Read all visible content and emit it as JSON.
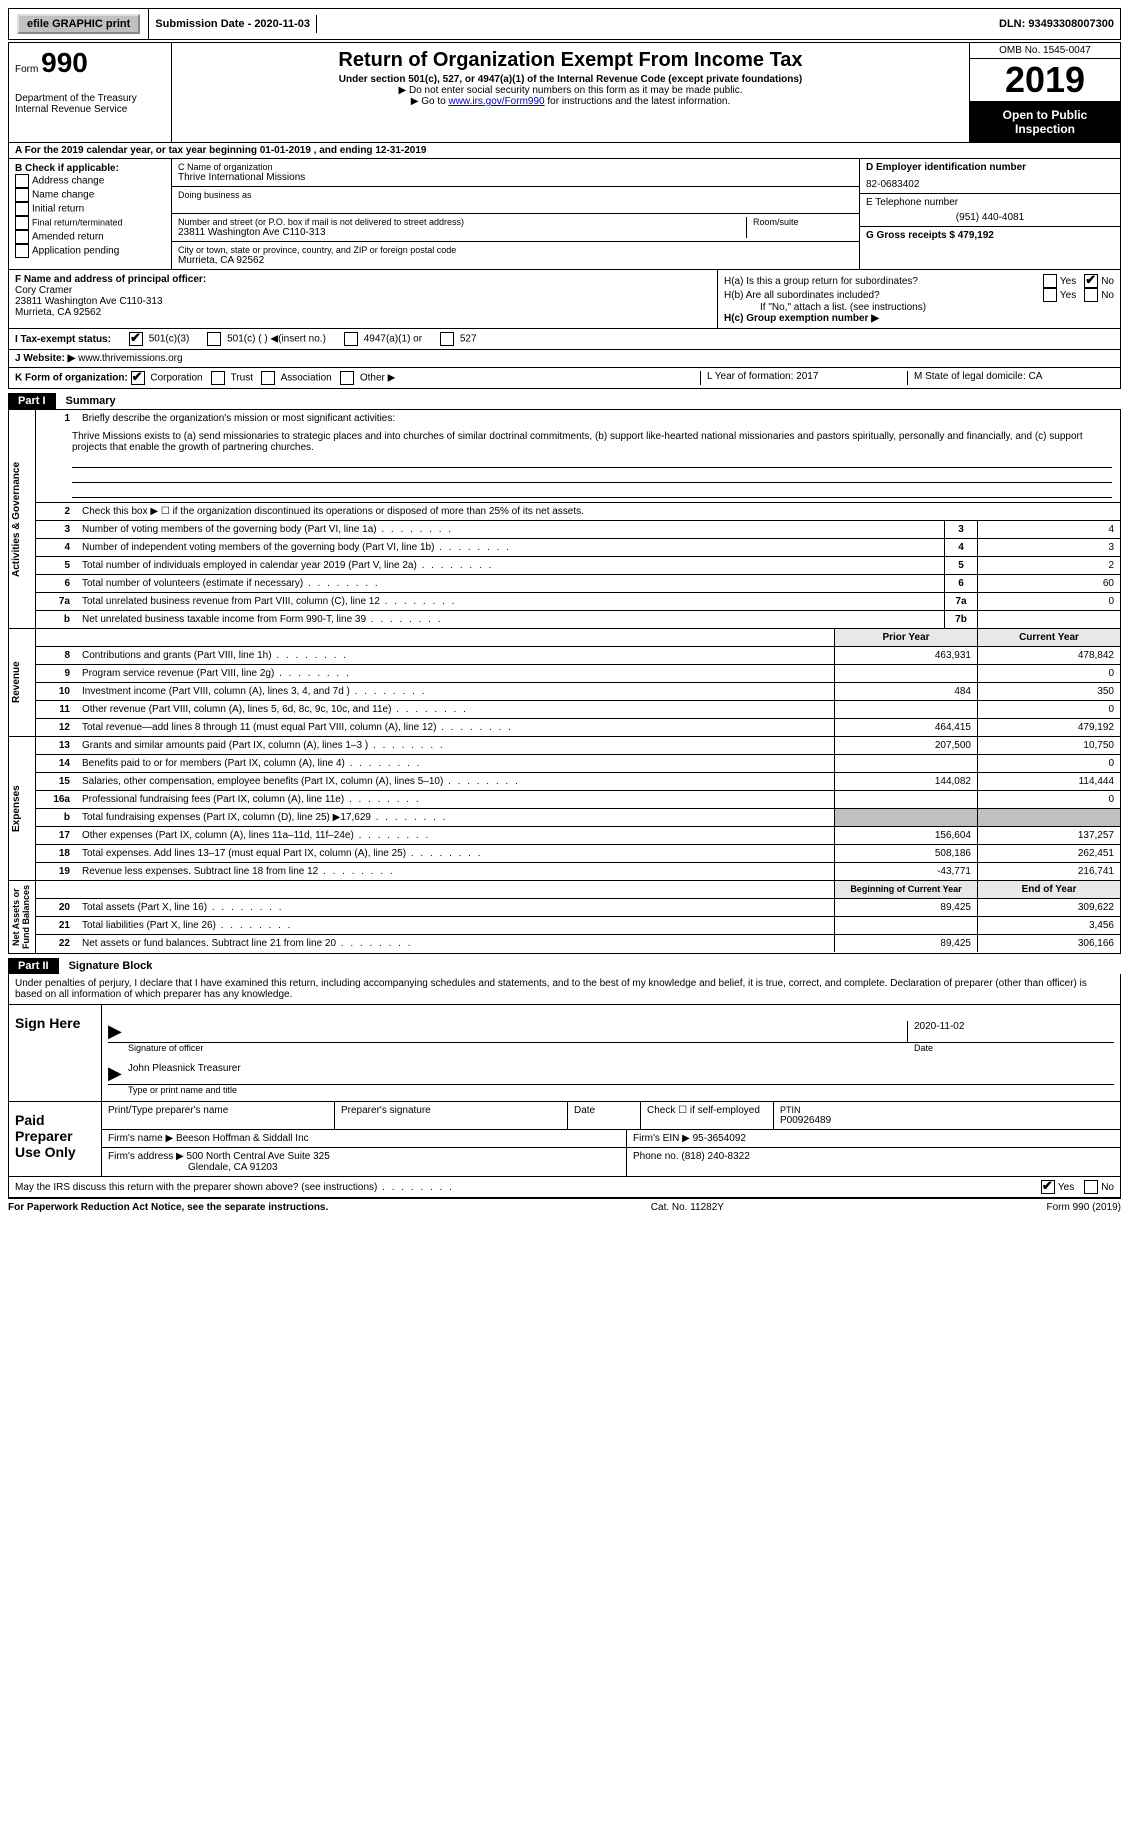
{
  "topbar": {
    "efile_btn": "efile GRAPHIC print",
    "submission_date": "Submission Date - 2020-11-03",
    "dln": "DLN: 93493308007300"
  },
  "header": {
    "form_label": "Form",
    "form_number": "990",
    "dept1": "Department of the Treasury",
    "dept2": "Internal Revenue Service",
    "title": "Return of Organization Exempt From Income Tax",
    "subtitle": "Under section 501(c), 527, or 4947(a)(1) of the Internal Revenue Code (except private foundations)",
    "note1": "▶ Do not enter social security numbers on this form as it may be made public.",
    "note2_pre": "▶ Go to ",
    "note2_link": "www.irs.gov/Form990",
    "note2_post": " for instructions and the latest information.",
    "omb": "OMB No. 1545-0047",
    "year": "2019",
    "open_public": "Open to Public Inspection"
  },
  "row_a": "A  For the 2019 calendar year, or tax year beginning 01-01-2019  , and ending 12-31-2019",
  "section_b": {
    "b_label": "B Check if applicable:",
    "checks": [
      "Address change",
      "Name change",
      "Initial return",
      "Final return/terminated",
      "Amended return",
      "Application pending"
    ],
    "c_label": "C Name of organization",
    "c_name": "Thrive International Missions",
    "dba": "Doing business as",
    "addr_label": "Number and street (or P.O. box if mail is not delivered to street address)",
    "room": "Room/suite",
    "addr_value": "23811 Washington Ave C110-313",
    "city_label": "City or town, state or province, country, and ZIP or foreign postal code",
    "city_value": "Murrieta, CA  92562",
    "d_label": "D Employer identification number",
    "d_value": "82-0683402",
    "e_label": "E Telephone number",
    "e_value": "(951) 440-4081",
    "g_label": "G Gross receipts $ 479,192"
  },
  "section_f": {
    "f_label": "F  Name and address of principal officer:",
    "f_name": "Cory Cramer",
    "f_addr1": "23811 Washington Ave C110-313",
    "f_addr2": "Murrieta, CA  92562",
    "ha": "H(a)  Is this a group return for subordinates?",
    "hb": "H(b)  Are all subordinates included?",
    "hb_note": "If \"No,\" attach a list. (see instructions)",
    "hc": "H(c)  Group exemption number ▶"
  },
  "row_i": {
    "label": "I  Tax-exempt status:",
    "opt1": "501(c)(3)",
    "opt2": "501(c) (  ) ◀(insert no.)",
    "opt3": "4947(a)(1) or",
    "opt4": "527"
  },
  "row_j": {
    "label": "J  Website: ▶",
    "value": "www.thrivemissions.org"
  },
  "row_k": {
    "label": "K Form of organization:",
    "opts": [
      "Corporation",
      "Trust",
      "Association",
      "Other ▶"
    ],
    "l": "L Year of formation: 2017",
    "m": "M State of legal domicile: CA"
  },
  "part1": {
    "label": "Part I",
    "title": "Summary",
    "line1_label": "Briefly describe the organization's mission or most significant activities:",
    "line1_text": "Thrive Missions exists to (a) send missionaries to strategic places and into churches of similar doctrinal commitments, (b) support like-hearted national missionaries and pastors spiritually, personally and financially, and (c) support projects that enable the growth of partnering churches.",
    "line2": "Check this box ▶ ☐ if the organization discontinued its operations or disposed of more than 25% of its net assets.",
    "governance": [
      {
        "n": "3",
        "t": "Number of voting members of the governing body (Part VI, line 1a)",
        "c": "3",
        "v": "4"
      },
      {
        "n": "4",
        "t": "Number of independent voting members of the governing body (Part VI, line 1b)",
        "c": "4",
        "v": "3"
      },
      {
        "n": "5",
        "t": "Total number of individuals employed in calendar year 2019 (Part V, line 2a)",
        "c": "5",
        "v": "2"
      },
      {
        "n": "6",
        "t": "Total number of volunteers (estimate if necessary)",
        "c": "6",
        "v": "60"
      },
      {
        "n": "7a",
        "t": "Total unrelated business revenue from Part VIII, column (C), line 12",
        "c": "7a",
        "v": "0"
      },
      {
        "n": "b",
        "t": "Net unrelated business taxable income from Form 990-T, line 39",
        "c": "7b",
        "v": ""
      }
    ],
    "col_prior": "Prior Year",
    "col_current": "Current Year",
    "revenue": [
      {
        "n": "8",
        "t": "Contributions and grants (Part VIII, line 1h)",
        "p": "463,931",
        "c": "478,842"
      },
      {
        "n": "9",
        "t": "Program service revenue (Part VIII, line 2g)",
        "p": "",
        "c": "0"
      },
      {
        "n": "10",
        "t": "Investment income (Part VIII, column (A), lines 3, 4, and 7d )",
        "p": "484",
        "c": "350"
      },
      {
        "n": "11",
        "t": "Other revenue (Part VIII, column (A), lines 5, 6d, 8c, 9c, 10c, and 11e)",
        "p": "",
        "c": "0"
      },
      {
        "n": "12",
        "t": "Total revenue—add lines 8 through 11 (must equal Part VIII, column (A), line 12)",
        "p": "464,415",
        "c": "479,192"
      }
    ],
    "expenses": [
      {
        "n": "13",
        "t": "Grants and similar amounts paid (Part IX, column (A), lines 1–3 )",
        "p": "207,500",
        "c": "10,750"
      },
      {
        "n": "14",
        "t": "Benefits paid to or for members (Part IX, column (A), line 4)",
        "p": "",
        "c": "0"
      },
      {
        "n": "15",
        "t": "Salaries, other compensation, employee benefits (Part IX, column (A), lines 5–10)",
        "p": "144,082",
        "c": "114,444"
      },
      {
        "n": "16a",
        "t": "Professional fundraising fees (Part IX, column (A), line 11e)",
        "p": "",
        "c": "0"
      },
      {
        "n": "b",
        "t": "Total fundraising expenses (Part IX, column (D), line 25) ▶17,629",
        "p": "shaded",
        "c": "shaded"
      },
      {
        "n": "17",
        "t": "Other expenses (Part IX, column (A), lines 11a–11d, 11f–24e)",
        "p": "156,604",
        "c": "137,257"
      },
      {
        "n": "18",
        "t": "Total expenses. Add lines 13–17 (must equal Part IX, column (A), line 25)",
        "p": "508,186",
        "c": "262,451"
      },
      {
        "n": "19",
        "t": "Revenue less expenses. Subtract line 18 from line 12",
        "p": "-43,771",
        "c": "216,741"
      }
    ],
    "col_begin": "Beginning of Current Year",
    "col_end": "End of Year",
    "netassets": [
      {
        "n": "20",
        "t": "Total assets (Part X, line 16)",
        "p": "89,425",
        "c": "309,622"
      },
      {
        "n": "21",
        "t": "Total liabilities (Part X, line 26)",
        "p": "",
        "c": "3,456"
      },
      {
        "n": "22",
        "t": "Net assets or fund balances. Subtract line 21 from line 20",
        "p": "89,425",
        "c": "306,166"
      }
    ]
  },
  "part2": {
    "label": "Part II",
    "title": "Signature Block",
    "declaration": "Under penalties of perjury, I declare that I have examined this return, including accompanying schedules and statements, and to the best of my knowledge and belief, it is true, correct, and complete. Declaration of preparer (other than officer) is based on all information of which preparer has any knowledge.",
    "sign_here": "Sign Here",
    "sig_officer": "Signature of officer",
    "date_val": "2020-11-02",
    "date_label": "Date",
    "officer_name": "John Pleasnick  Treasurer",
    "officer_type": "Type or print name and title",
    "paid_prep": "Paid Preparer Use Only",
    "prep_h1": "Print/Type preparer's name",
    "prep_h2": "Preparer's signature",
    "prep_h3": "Date",
    "prep_h4_check": "Check ☐ if self-employed",
    "prep_h4_ptin": "PTIN",
    "prep_ptin": "P00926489",
    "firm_name_label": "Firm's name   ▶",
    "firm_name": "Beeson Hoffman & Siddall Inc",
    "firm_ein_label": "Firm's EIN ▶",
    "firm_ein": "95-3654092",
    "firm_addr_label": "Firm's address ▶",
    "firm_addr1": "500 North Central Ave Suite 325",
    "firm_addr2": "Glendale, CA  91203",
    "phone_label": "Phone no.",
    "phone": "(818) 240-8322",
    "may_irs": "May the IRS discuss this return with the preparer shown above? (see instructions)"
  },
  "footer": {
    "paperwork": "For Paperwork Reduction Act Notice, see the separate instructions.",
    "catno": "Cat. No. 11282Y",
    "formno": "Form 990 (2019)"
  },
  "labels": {
    "yes": "Yes",
    "no": "No"
  }
}
